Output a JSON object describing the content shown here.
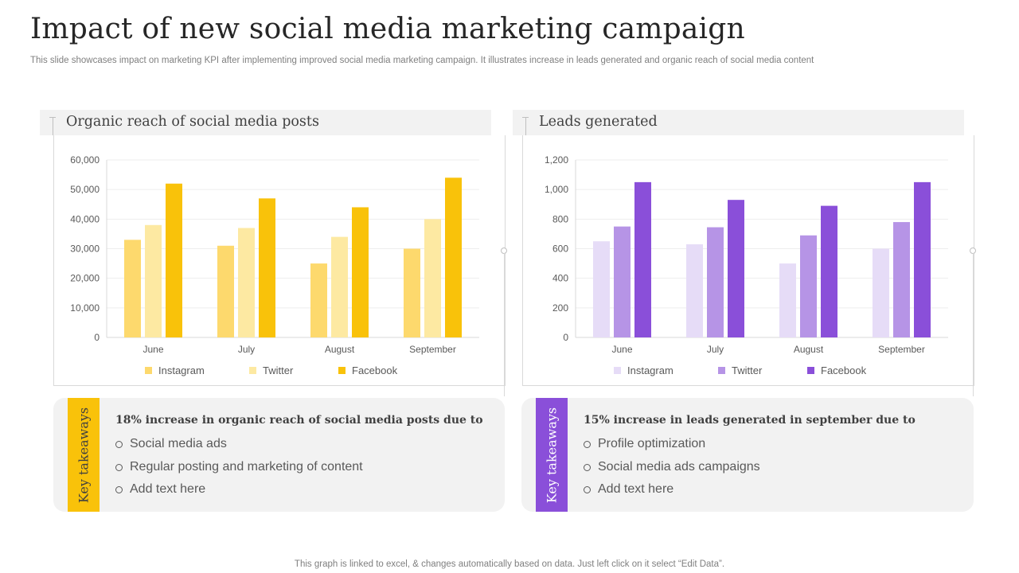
{
  "title": "Impact of new social media marketing campaign",
  "subtitle": "This slide showcases impact on marketing KPI after implementing improved social media marketing campaign. It illustrates increase in leads generated and organic reach of social media content",
  "footer": "This graph is linked to excel, & changes automatically based on data. Just left click on it select “Edit Data”.",
  "colors": {
    "yellow": [
      "#fde9a2",
      "#fdd96d",
      "#f9c20a"
    ],
    "purple": [
      "#e6dcf7",
      "#b694e6",
      "#8a4fd9"
    ]
  },
  "chart_data": [
    {
      "type": "bar",
      "title": "Organic reach of social media posts",
      "categories": [
        "June",
        "July",
        "August",
        "September"
      ],
      "series": [
        {
          "name": "Instagram",
          "values": [
            33000,
            31000,
            25000,
            30000
          ]
        },
        {
          "name": "Twitter",
          "values": [
            38000,
            37000,
            34000,
            40000
          ]
        },
        {
          "name": "Facebook",
          "values": [
            52000,
            47000,
            44000,
            54000
          ]
        }
      ],
      "yticks": [
        "0",
        "10,000",
        "20,000",
        "30,000",
        "40,000",
        "50,000",
        "60,000"
      ],
      "ylim": [
        0,
        60000
      ],
      "xlabel": "",
      "ylabel": "",
      "legend": "bottom"
    },
    {
      "type": "bar",
      "title": "Leads generated",
      "categories": [
        "June",
        "July",
        "August",
        "September"
      ],
      "series": [
        {
          "name": "Instagram",
          "values": [
            650,
            630,
            500,
            600
          ]
        },
        {
          "name": "Twitter",
          "values": [
            750,
            745,
            690,
            780
          ]
        },
        {
          "name": "Facebook",
          "values": [
            1050,
            930,
            890,
            1050
          ]
        }
      ],
      "yticks": [
        "0",
        "200",
        "400",
        "600",
        "800",
        "1,000",
        "1,200"
      ],
      "ylim": [
        0,
        1200
      ],
      "xlabel": "",
      "ylabel": "",
      "legend": "bottom"
    }
  ],
  "takeaways": [
    {
      "tab_label": "Key takeaways",
      "heading": "18% increase in organic reach of social media posts due to",
      "points": [
        "Social media ads",
        "Regular posting and marketing of content",
        "Add text here"
      ]
    },
    {
      "tab_label": "Key takeaways",
      "heading": "15% increase in leads generated in september  due to",
      "points": [
        "Profile optimization",
        "Social media ads campaigns",
        "Add text here"
      ]
    }
  ]
}
